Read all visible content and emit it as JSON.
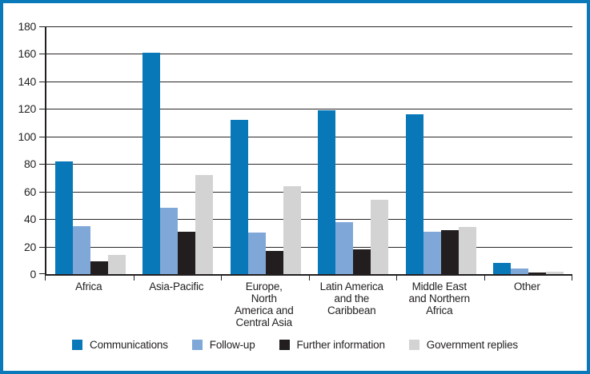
{
  "chart_data": {
    "type": "bar",
    "title": "",
    "xlabel": "",
    "ylabel": "",
    "ylim": [
      0,
      180
    ],
    "yticks": [
      0,
      20,
      40,
      60,
      80,
      100,
      120,
      140,
      160,
      180
    ],
    "grid": true,
    "legend_position": "bottom",
    "categories": [
      "Africa",
      "Asia-Pacific",
      "Europe,\nNorth\nAmerica and\nCentral Asia",
      "Latin America\nand the\nCaribbean",
      "Middle East\nand Northern\nAfrica",
      "Other"
    ],
    "series": [
      {
        "name": "Communications",
        "color": "#0878b8",
        "values": [
          82,
          161,
          112,
          119,
          116,
          8
        ]
      },
      {
        "name": "Follow-up",
        "color": "#7fa8d9",
        "values": [
          35,
          48,
          30,
          38,
          31,
          4
        ]
      },
      {
        "name": "Further information",
        "color": "#221e1f",
        "values": [
          9,
          31,
          17,
          18,
          32,
          1
        ]
      },
      {
        "name": "Government replies",
        "color": "#d3d3d3",
        "values": [
          14,
          72,
          64,
          54,
          34,
          2
        ]
      }
    ]
  },
  "colors": {
    "frame": "#0a79ba",
    "axis": "#231f20",
    "gridline": "#2b2728",
    "text": "#231f20",
    "background": "#ffffff"
  }
}
